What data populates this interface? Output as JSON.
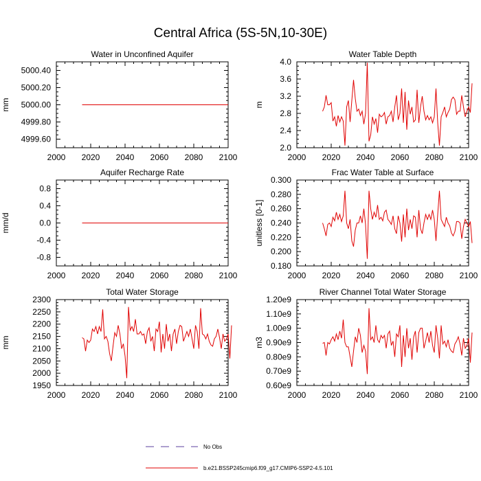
{
  "title": "Central Africa (5S-5N,10-30E)",
  "colors": {
    "series": "#e00000",
    "obs": "#5a3f9e",
    "axis": "#000000"
  },
  "legend": [
    {
      "label": "No Obs",
      "style": "dashed",
      "color": "#5a3f9e"
    },
    {
      "label": "b.e21.BSSP245cmip6.f09_g17.CMIP6-SSP2-4.5.101",
      "style": "solid",
      "color": "#e00000"
    }
  ],
  "chart_data": [
    {
      "type": "line",
      "title": "Water in Unconfined Aquifer",
      "ylabel": "mm",
      "xlim": [
        2000,
        2100
      ],
      "ylim": [
        4999.5,
        5000.5
      ],
      "xticks": [
        2000,
        2020,
        2040,
        2060,
        2080,
        2100
      ],
      "xtick_labels": [
        "2000",
        "2020",
        "2040",
        "2060",
        "2080",
        "2100"
      ],
      "yticks": [
        4999.6,
        4999.8,
        5000.0,
        5000.2,
        5000.4
      ],
      "ytick_labels": [
        "4999.60",
        "4999.80",
        "5000.00",
        "5000.20",
        "5000.40"
      ],
      "x": [
        2015,
        2100
      ],
      "values": [
        5000.0,
        5000.0
      ]
    },
    {
      "type": "line",
      "title": "Water Table Depth",
      "ylabel": "m",
      "xlim": [
        2000,
        2100
      ],
      "ylim": [
        2.0,
        4.0
      ],
      "xticks": [
        2000,
        2020,
        2040,
        2060,
        2080,
        2100
      ],
      "xtick_labels": [
        "2000",
        "2020",
        "2040",
        "2060",
        "2080",
        "2100"
      ],
      "yticks": [
        2.0,
        2.4,
        2.8,
        3.2,
        3.6,
        4.0
      ],
      "ytick_labels": [
        "2.0",
        "2.4",
        "2.8",
        "3.2",
        "3.6",
        "4.0"
      ],
      "x_start": 2015,
      "values": [
        2.85,
        2.95,
        3.22,
        3.0,
        3.0,
        3.05,
        2.62,
        2.72,
        2.5,
        2.75,
        2.6,
        2.72,
        2.62,
        2.05,
        2.95,
        3.1,
        2.6,
        3.1,
        3.58,
        3.15,
        2.85,
        2.9,
        2.75,
        2.85,
        2.55,
        2.8,
        3.98,
        2.15,
        2.3,
        2.72,
        2.55,
        2.68,
        2.35,
        2.78,
        2.72,
        2.75,
        2.82,
        2.55,
        2.72,
        2.75,
        2.85,
        2.6,
        2.95,
        3.22,
        2.65,
        2.8,
        3.38,
        2.58,
        3.3,
        2.42,
        3.1,
        2.78,
        2.95,
        2.6,
        2.65,
        3.35,
        2.58,
        2.95,
        3.2,
        2.85,
        2.65,
        2.75,
        2.65,
        2.72,
        2.58,
        2.72,
        3.38,
        2.58,
        2.05,
        2.72,
        2.82,
        2.95,
        2.72,
        2.82,
        2.9,
        3.12,
        3.18,
        3.12,
        2.78,
        2.85,
        2.85,
        3.22,
        2.95,
        2.72,
        2.85,
        2.95,
        2.82,
        3.5
      ]
    },
    {
      "type": "line",
      "title": "Aquifer Recharge Rate",
      "ylabel": "mm/d",
      "xlim": [
        2000,
        2100
      ],
      "ylim": [
        -1.0,
        1.0
      ],
      "xticks": [
        2000,
        2020,
        2040,
        2060,
        2080,
        2100
      ],
      "xtick_labels": [
        "2000",
        "2020",
        "2040",
        "2060",
        "2080",
        "2100"
      ],
      "yticks": [
        -0.8,
        -0.4,
        0.0,
        0.4,
        0.8
      ],
      "ytick_labels": [
        "-0.8",
        "-0.4",
        "0.0",
        "0.4",
        "0.8"
      ],
      "x": [
        2015,
        2100
      ],
      "values": [
        0.0,
        0.0
      ]
    },
    {
      "type": "line",
      "title": "Frac Water Table at Surface",
      "ylabel": "unitless [0-1]",
      "xlim": [
        2000,
        2100
      ],
      "ylim": [
        0.18,
        0.3
      ],
      "xticks": [
        2000,
        2020,
        2040,
        2060,
        2080,
        2100
      ],
      "xtick_labels": [
        "2000",
        "2020",
        "2040",
        "2060",
        "2080",
        "2100"
      ],
      "yticks": [
        0.18,
        0.2,
        0.22,
        0.24,
        0.26,
        0.28,
        0.3
      ],
      "ytick_labels": [
        "0.180",
        "0.200",
        "0.220",
        "0.240",
        "0.260",
        "0.280",
        "0.300"
      ],
      "x_start": 2015,
      "values": [
        0.24,
        0.232,
        0.222,
        0.238,
        0.24,
        0.235,
        0.248,
        0.243,
        0.255,
        0.245,
        0.252,
        0.242,
        0.25,
        0.285,
        0.24,
        0.232,
        0.245,
        0.215,
        0.207,
        0.23,
        0.24,
        0.24,
        0.25,
        0.24,
        0.26,
        0.238,
        0.19,
        0.285,
        0.26,
        0.245,
        0.255,
        0.248,
        0.265,
        0.245,
        0.248,
        0.243,
        0.255,
        0.258,
        0.245,
        0.242,
        0.238,
        0.25,
        0.232,
        0.225,
        0.25,
        0.24,
        0.214,
        0.252,
        0.22,
        0.26,
        0.23,
        0.245,
        0.232,
        0.25,
        0.248,
        0.22,
        0.258,
        0.232,
        0.225,
        0.24,
        0.252,
        0.245,
        0.252,
        0.245,
        0.258,
        0.245,
        0.215,
        0.252,
        0.285,
        0.245,
        0.24,
        0.235,
        0.248,
        0.24,
        0.236,
        0.226,
        0.222,
        0.228,
        0.242,
        0.242,
        0.24,
        0.218,
        0.235,
        0.245,
        0.24,
        0.235,
        0.242,
        0.212
      ]
    },
    {
      "type": "line",
      "title": "Total Water Storage",
      "ylabel": "mm",
      "xlim": [
        2000,
        2100
      ],
      "ylim": [
        1950,
        2300
      ],
      "xticks": [
        2000,
        2020,
        2040,
        2060,
        2080,
        2100
      ],
      "xtick_labels": [
        "2000",
        "2020",
        "2040",
        "2060",
        "2080",
        "2100"
      ],
      "yticks": [
        1950,
        2000,
        2050,
        2100,
        2150,
        2200,
        2250,
        2300
      ],
      "ytick_labels": [
        "1950",
        "2000",
        "2050",
        "2100",
        "2150",
        "2200",
        "2250",
        "2300"
      ],
      "x_start": 2015,
      "values": [
        2145,
        2140,
        2090,
        2135,
        2125,
        2135,
        2180,
        2170,
        2190,
        2160,
        2190,
        2170,
        2260,
        2140,
        2150,
        2130,
        2080,
        2050,
        2110,
        2165,
        2150,
        2195,
        2160,
        2100,
        2120,
        2070,
        1980,
        2270,
        2175,
        2190,
        2170,
        2220,
        2160,
        2160,
        2170,
        2155,
        2160,
        2120,
        2170,
        2185,
        2130,
        2150,
        2090,
        2180,
        2170,
        2210,
        2085,
        2160,
        2100,
        2200,
        2130,
        2160,
        2090,
        2160,
        2180,
        2120,
        2170,
        2195,
        2190,
        2130,
        2150,
        2170,
        2150,
        2180,
        2140,
        2100,
        2195,
        2170,
        2100,
        2265,
        2160,
        2155,
        2140,
        2160,
        2130,
        2115,
        2110,
        2140,
        2150,
        2180,
        2145,
        2100,
        2160,
        2130,
        2140,
        2160,
        2060,
        2195
      ]
    },
    {
      "type": "line",
      "title": "River Channel Total Water Storage",
      "ylabel": "m3",
      "xlim": [
        2000,
        2100
      ],
      "ylim": [
        600000000.0,
        1200000000.0
      ],
      "xticks": [
        2000,
        2020,
        2040,
        2060,
        2080,
        2100
      ],
      "xtick_labels": [
        "2000",
        "2020",
        "2040",
        "2060",
        "2080",
        "2100"
      ],
      "yticks": [
        600000000.0,
        700000000.0,
        800000000.0,
        900000000.0,
        1000000000.0,
        1100000000.0,
        1200000000.0
      ],
      "ytick_labels": [
        "0.60e9",
        "0.70e9",
        "0.80e9",
        "0.90e9",
        "1.00e9",
        "1.10e9",
        "1.20e9"
      ],
      "x_start": 2015,
      "values": [
        895000000.0,
        900000000.0,
        810000000.0,
        900000000.0,
        890000000.0,
        920000000.0,
        940000000.0,
        910000000.0,
        960000000.0,
        920000000.0,
        980000000.0,
        930000000.0,
        1060000000.0,
        900000000.0,
        870000000.0,
        870000000.0,
        800000000.0,
        730000000.0,
        840000000.0,
        940000000.0,
        900000000.0,
        1000000000.0,
        950000000.0,
        830000000.0,
        880000000.0,
        840000000.0,
        680000000.0,
        1140000000.0,
        920000000.0,
        940000000.0,
        900000000.0,
        1020000000.0,
        920000000.0,
        900000000.0,
        950000000.0,
        930000000.0,
        950000000.0,
        860000000.0,
        960000000.0,
        980000000.0,
        880000000.0,
        910000000.0,
        800000000.0,
        960000000.0,
        940000000.0,
        1020000000.0,
        730000000.0,
        950000000.0,
        800000000.0,
        1000000000.0,
        860000000.0,
        930000000.0,
        780000000.0,
        940000000.0,
        980000000.0,
        830000000.0,
        970000000.0,
        1000000000.0,
        1000000000.0,
        860000000.0,
        910000000.0,
        970000000.0,
        900000000.0,
        980000000.0,
        880000000.0,
        830000000.0,
        1020000000.0,
        930000000.0,
        790000000.0,
        1020000000.0,
        890000000.0,
        910000000.0,
        870000000.0,
        920000000.0,
        860000000.0,
        840000000.0,
        830000000.0,
        890000000.0,
        910000000.0,
        940000000.0,
        890000000.0,
        810000000.0,
        930000000.0,
        860000000.0,
        880000000.0,
        930000000.0,
        760000000.0,
        970000000.0
      ]
    }
  ]
}
